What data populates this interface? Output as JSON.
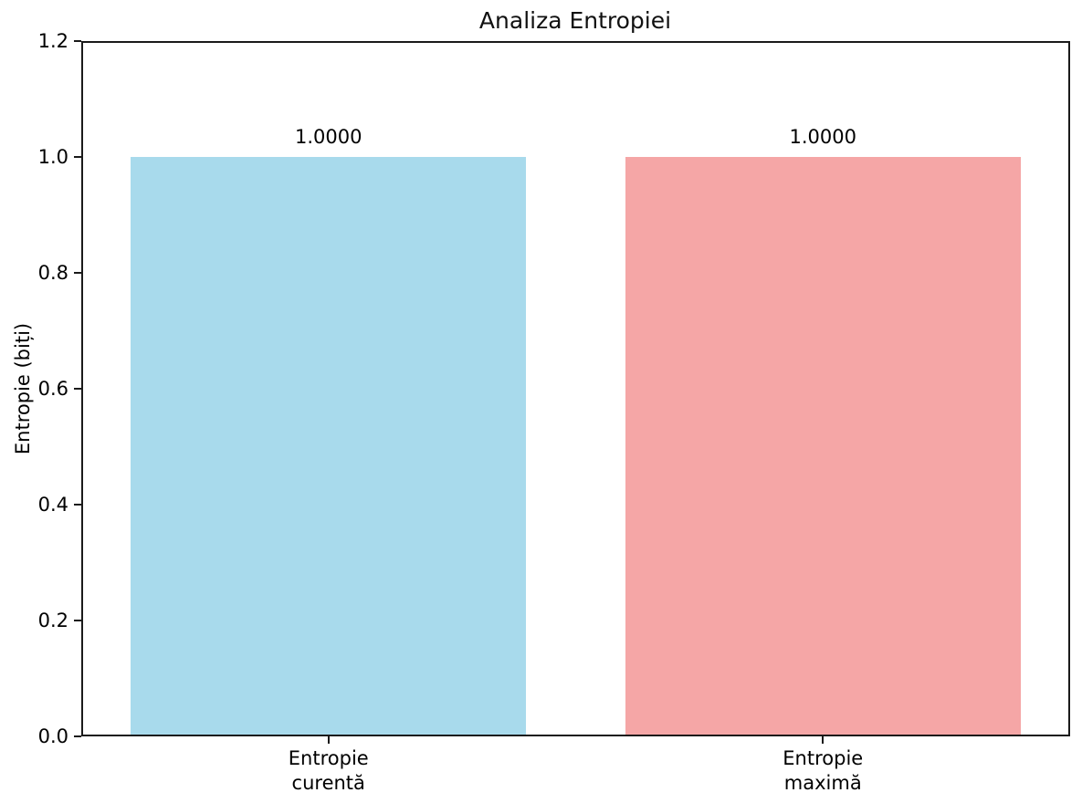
{
  "chart_data": {
    "type": "bar",
    "title": "Analiza Entropiei",
    "xlabel": "",
    "ylabel": "Entropie (biți)",
    "categories": [
      "Entropie\ncurentă",
      "Entropie\nmaximă"
    ],
    "values": [
      1.0,
      1.0
    ],
    "value_labels": [
      "1.0000",
      "1.0000"
    ],
    "bar_colors": [
      "#A8DAEC",
      "#F5A6A6"
    ],
    "ylim": [
      0,
      1.2
    ],
    "yticks": [
      0.0,
      0.2,
      0.4,
      0.6,
      0.8,
      1.0,
      1.2
    ],
    "ytick_labels": [
      "0.0",
      "0.2",
      "0.4",
      "0.6",
      "0.8",
      "1.0",
      "1.2"
    ],
    "bar_width_fraction": 0.8,
    "grid": false,
    "legend": "none"
  },
  "colors": {
    "spine": "#1a1a1a",
    "text": "#000000",
    "background": "#ffffff"
  }
}
